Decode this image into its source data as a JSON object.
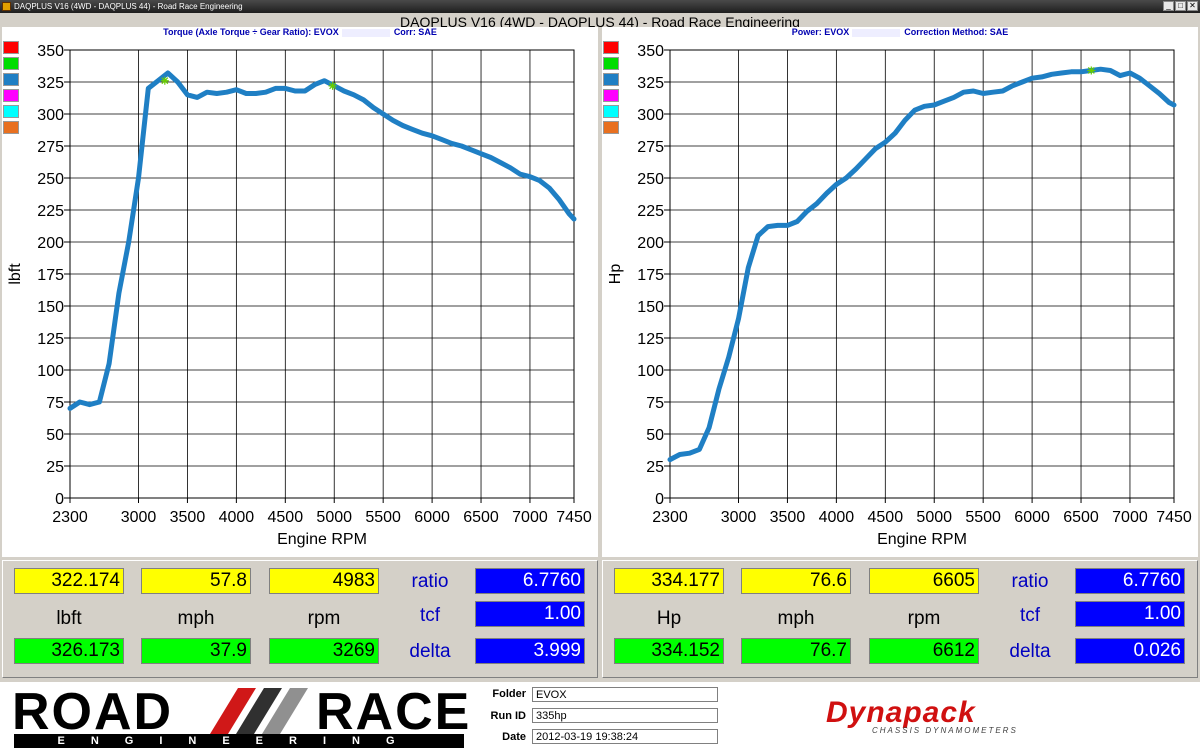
{
  "window": {
    "title": "DAQPLUS V16 (4WD - DAQPLUS 44) - Road Race Engineering",
    "main_title": "DAQPLUS V16 (4WD - DAQPLUS 44) - Road Race Engineering",
    "buttons": {
      "minimize": "_",
      "maximize": "□",
      "close": "✕"
    }
  },
  "left_panel": {
    "header": "Torque (Axle Torque ÷ Gear Ratio): EVOX",
    "header2": "Corr: SAE",
    "swatch_colors": [
      "#ff0000",
      "#00dd00",
      "#1f7fc4",
      "#ff00ff",
      "#00ffff",
      "#e87020"
    ]
  },
  "right_panel": {
    "header": "Power: EVOX",
    "header2": "Correction Method: SAE",
    "swatch_colors": [
      "#ff0000",
      "#00dd00",
      "#1f7fc4",
      "#ff00ff",
      "#00ffff",
      "#e87020"
    ]
  },
  "chart_data": [
    {
      "type": "line",
      "title": "",
      "xlabel": "Engine RPM",
      "ylabel": "lbft",
      "xlim": [
        2300,
        7450
      ],
      "ylim": [
        0,
        350
      ],
      "xticks": [
        2300,
        3000,
        3500,
        4000,
        4500,
        5000,
        5500,
        6000,
        6500,
        7000,
        7450
      ],
      "yticks": [
        0,
        25,
        50,
        75,
        100,
        125,
        150,
        175,
        200,
        225,
        250,
        275,
        300,
        325,
        350
      ],
      "grid": true,
      "line_color": "#1f7fc4",
      "marker_color": "#66cc00",
      "markers": [
        {
          "x": 3269,
          "y": 326
        },
        {
          "x": 4983,
          "y": 322
        }
      ],
      "series": [
        {
          "x": [
            2300,
            2400,
            2500,
            2600,
            2700,
            2800,
            2900,
            3000,
            3100,
            3200,
            3300,
            3400,
            3500,
            3600,
            3700,
            3800,
            3900,
            4000,
            4100,
            4200,
            4300,
            4400,
            4500,
            4600,
            4700,
            4800,
            4900,
            5000,
            5100,
            5200,
            5300,
            5400,
            5500,
            5600,
            5700,
            5800,
            5900,
            6000,
            6100,
            6200,
            6300,
            6400,
            6500,
            6600,
            6700,
            6800,
            6900,
            7000,
            7100,
            7200,
            7300,
            7400,
            7450
          ],
          "y": [
            70,
            75,
            73,
            75,
            105,
            160,
            200,
            250,
            320,
            326,
            332,
            325,
            315,
            313,
            317,
            316,
            317,
            319,
            316,
            316,
            317,
            320,
            320,
            318,
            318,
            323,
            326,
            322,
            318,
            315,
            311,
            305,
            300,
            295,
            291,
            288,
            285,
            283,
            280,
            277,
            275,
            272,
            269,
            266,
            262,
            258,
            253,
            251,
            248,
            242,
            233,
            222,
            218
          ]
        }
      ]
    },
    {
      "type": "line",
      "title": "",
      "xlabel": "Engine RPM",
      "ylabel": "Hp",
      "xlim": [
        2300,
        7450
      ],
      "ylim": [
        0,
        350
      ],
      "xticks": [
        2300,
        3000,
        3500,
        4000,
        4500,
        5000,
        5500,
        6000,
        6500,
        7000,
        7450
      ],
      "yticks": [
        0,
        25,
        50,
        75,
        100,
        125,
        150,
        175,
        200,
        225,
        250,
        275,
        300,
        325,
        350
      ],
      "grid": true,
      "line_color": "#1f7fc4",
      "marker_color": "#66cc00",
      "markers": [
        {
          "x": 6605,
          "y": 334
        }
      ],
      "series": [
        {
          "x": [
            2300,
            2400,
            2500,
            2600,
            2700,
            2800,
            2900,
            3000,
            3100,
            3200,
            3300,
            3400,
            3500,
            3600,
            3700,
            3800,
            3900,
            4000,
            4100,
            4200,
            4300,
            4400,
            4500,
            4600,
            4700,
            4800,
            4900,
            5000,
            5100,
            5200,
            5300,
            5400,
            5500,
            5600,
            5700,
            5800,
            5900,
            6000,
            6100,
            6200,
            6300,
            6400,
            6500,
            6600,
            6700,
            6800,
            6900,
            7000,
            7100,
            7200,
            7300,
            7400,
            7450
          ],
          "y": [
            30,
            34,
            35,
            38,
            55,
            85,
            110,
            140,
            180,
            205,
            212,
            213,
            213,
            216,
            224,
            230,
            238,
            245,
            250,
            257,
            265,
            273,
            278,
            285,
            295,
            303,
            306,
            307,
            310,
            313,
            317,
            318,
            316,
            317,
            318,
            322,
            325,
            328,
            329,
            331,
            332,
            333,
            333,
            334,
            335,
            334,
            330,
            332,
            328,
            322,
            316,
            309,
            307
          ]
        }
      ]
    }
  ],
  "left_readout": {
    "row1": [
      "322.174",
      "57.8",
      "4983"
    ],
    "row2": [
      "lbft",
      "mph",
      "rpm"
    ],
    "row3": [
      "326.173",
      "37.9",
      "3269"
    ],
    "labels": [
      "ratio",
      "tcf",
      "delta"
    ],
    "values": [
      "6.7760",
      "1.00",
      "3.999"
    ]
  },
  "right_readout": {
    "row1": [
      "334.177",
      "76.6",
      "6605"
    ],
    "row2": [
      "Hp",
      "mph",
      "rpm"
    ],
    "row3": [
      "334.152",
      "76.7",
      "6612"
    ],
    "labels": [
      "ratio",
      "tcf",
      "delta"
    ],
    "values": [
      "6.7760",
      "1.00",
      "0.026"
    ]
  },
  "footer": {
    "logo_road": "ROAD",
    "logo_race": "RACE",
    "logo_engineering": "ENGINEERING",
    "folder_label": "Folder",
    "folder_value": "EVOX",
    "runid_label": "Run ID",
    "runid_value": "335hp",
    "date_label": "Date",
    "date_value": "2012-03-19 19:38:24",
    "brand": "Dynapack",
    "brand_sub": "CHASSIS DYNAMOMETERS"
  }
}
